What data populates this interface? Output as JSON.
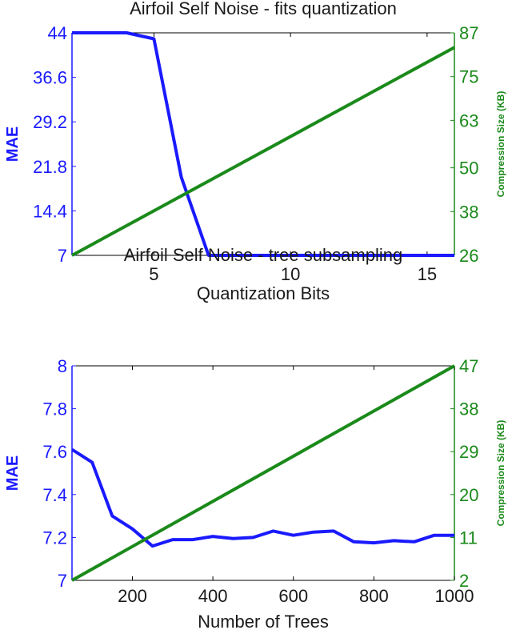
{
  "chart_data": [
    {
      "type": "line",
      "title": "Airfoil Self Noise - fits quantization",
      "xlabel": "Quantization Bits",
      "ylabel_left": "MAE",
      "ylabel_right": "Compression Size (KB)",
      "xlim": [
        2,
        16
      ],
      "xticks": [
        5,
        10,
        15
      ],
      "ylim_left": [
        7,
        44
      ],
      "yticks_left": [
        "7",
        "14.4",
        "21.8",
        "29.2",
        "36.6",
        "44"
      ],
      "ylim_right": [
        26,
        87
      ],
      "yticks_right": [
        "26",
        "38",
        "50",
        "63",
        "75",
        "87"
      ],
      "left_color": "#1a1aff",
      "right_color": "#1a8a1a",
      "series": [
        {
          "name": "MAE",
          "axis": "left",
          "color": "#1a1aff",
          "x": [
            2,
            3,
            4,
            5,
            6,
            7,
            8,
            9,
            10,
            11,
            12,
            13,
            14,
            15,
            16
          ],
          "y": [
            44,
            44,
            44,
            43,
            20,
            7,
            7,
            7,
            7,
            7,
            7,
            7,
            7,
            7,
            7
          ]
        },
        {
          "name": "Compression Size (KB)",
          "axis": "right",
          "color": "#1a8a1a",
          "x": [
            2,
            16
          ],
          "y": [
            26,
            83
          ]
        }
      ]
    },
    {
      "type": "line",
      "title": "Airfoil Self Noise - tree subsampling",
      "xlabel": "Number of Trees",
      "ylabel_left": "MAE",
      "ylabel_right": "Compression Size (KB)",
      "xlim": [
        50,
        1000
      ],
      "xticks": [
        200,
        400,
        600,
        800,
        1000
      ],
      "ylim_left": [
        7,
        8
      ],
      "yticks_left": [
        "7",
        "7.2",
        "7.4",
        "7.6",
        "7.8",
        "8"
      ],
      "ylim_right": [
        2,
        47
      ],
      "yticks_right": [
        "2",
        "11",
        "20",
        "29",
        "38",
        "47"
      ],
      "left_color": "#1a1aff",
      "right_color": "#1a8a1a",
      "series": [
        {
          "name": "MAE",
          "axis": "left",
          "color": "#1a1aff",
          "x": [
            50,
            100,
            150,
            200,
            250,
            300,
            350,
            400,
            450,
            500,
            550,
            600,
            650,
            700,
            750,
            800,
            850,
            900,
            950,
            1000
          ],
          "y": [
            7.61,
            7.55,
            7.3,
            7.24,
            7.16,
            7.19,
            7.19,
            7.205,
            7.195,
            7.2,
            7.23,
            7.21,
            7.225,
            7.23,
            7.18,
            7.175,
            7.185,
            7.18,
            7.21,
            7.21
          ]
        },
        {
          "name": "Compression Size (KB)",
          "axis": "right",
          "color": "#1a8a1a",
          "x": [
            50,
            1000
          ],
          "y": [
            2,
            47
          ]
        }
      ]
    }
  ]
}
